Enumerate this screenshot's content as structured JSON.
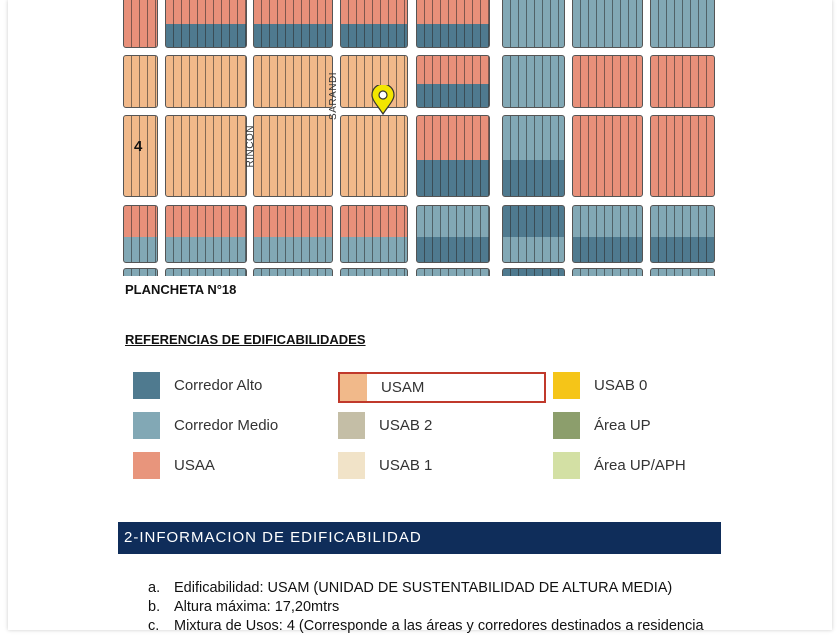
{
  "map": {
    "streets": [
      "SARANDI",
      "RINCON"
    ],
    "zone_number": "4",
    "marker_icon": "map-pin-icon",
    "marker_color": "#f2e600"
  },
  "plancheta": "PLANCHETA N°18",
  "references_title": "REFERENCIAS DE EDIFICABILIDADES",
  "legend": [
    {
      "label": "Corredor Alto",
      "color": "#4f7a8f"
    },
    {
      "label": "USAM",
      "color": "#f1b98a",
      "highlighted": true
    },
    {
      "label": "USAB 0",
      "color": "#f5c518"
    },
    {
      "label": "Corredor Medio",
      "color": "#82a8b5"
    },
    {
      "label": "USAB 2",
      "color": "#c4bea6"
    },
    {
      "label": "Área UP",
      "color": "#8c9e6c"
    },
    {
      "label": "USAA",
      "color": "#e8957c"
    },
    {
      "label": "USAB 1",
      "color": "#f1e3c8"
    },
    {
      "label": "Área UP/APH",
      "color": "#d3e0a4"
    }
  ],
  "section_header": "2-INFORMACION DE EDIFICABILIDAD",
  "section_header_color": "#0f2d5a",
  "items": [
    {
      "marker": "a.",
      "text": "Edificabilidad: USAM (UNIDAD DE SUSTENTABILIDAD DE ALTURA MEDIA)"
    },
    {
      "marker": "b.",
      "text": "Altura máxima: 17,20mtrs"
    },
    {
      "marker": "c.",
      "text": "Mixtura de Usos: 4 (Corresponde a las áreas y corredores destinados a residencia"
    }
  ]
}
